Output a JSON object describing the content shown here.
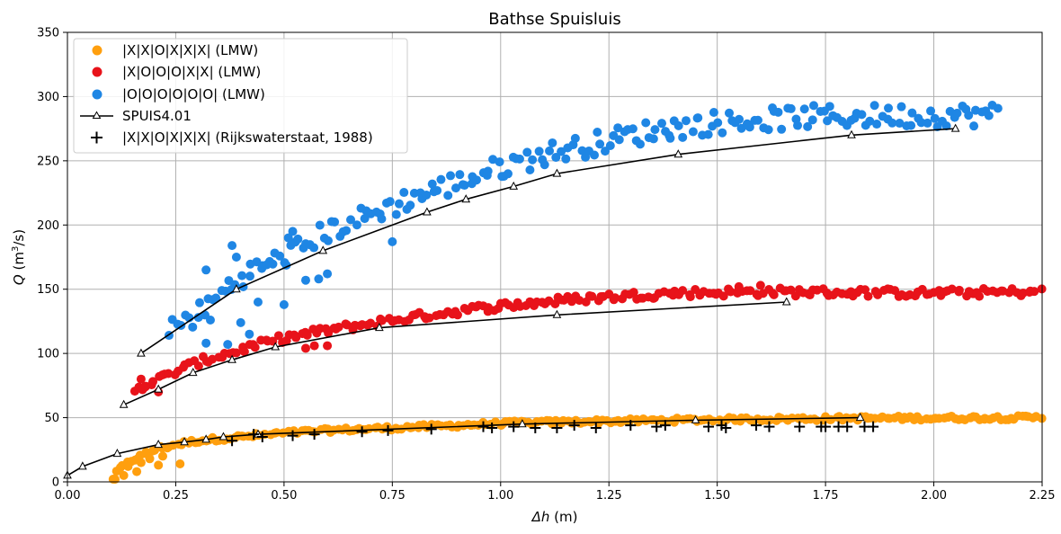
{
  "chart_data": {
    "type": "scatter",
    "title": "Bathse Spuisluis",
    "xlabel_symbol": "Δh",
    "xlabel_unit": " (m)",
    "ylabel_symbol": "Q",
    "ylabel_unit_pre": " (m",
    "ylabel_unit_sup": "3",
    "ylabel_unit_post": "/s)",
    "xlim": [
      0,
      2.25
    ],
    "ylim": [
      0,
      350
    ],
    "xticks": [
      "0.00",
      "0.25",
      "0.50",
      "0.75",
      "1.00",
      "1.25",
      "1.50",
      "1.75",
      "2.00",
      "2.25"
    ],
    "yticks": [
      "0",
      "50",
      "100",
      "150",
      "200",
      "250",
      "300",
      "350"
    ],
    "grid": true,
    "legend_position": "upper-left",
    "colors": {
      "orange": "#ff9f0e",
      "red": "#e8131a",
      "blue": "#1f86e4",
      "line": "#000000",
      "grid": "#b0b0b0"
    },
    "series": [
      {
        "name": "|X|X|O|X|X|X| (LMW)",
        "kind": "scatter-dense",
        "color": "orange",
        "curve": [
          [
            0.1,
            0
          ],
          [
            0.12,
            10
          ],
          [
            0.15,
            17
          ],
          [
            0.2,
            25
          ],
          [
            0.25,
            29
          ],
          [
            0.3,
            32
          ],
          [
            0.4,
            35
          ],
          [
            0.5,
            38
          ],
          [
            0.6,
            40
          ],
          [
            0.75,
            42
          ],
          [
            0.9,
            44
          ],
          [
            1.0,
            45.5
          ],
          [
            1.2,
            47
          ],
          [
            1.5,
            48.5
          ],
          [
            1.8,
            49.5
          ],
          [
            2.25,
            50
          ]
        ],
        "extra_points": [
          [
            0.11,
            2
          ],
          [
            0.13,
            5
          ],
          [
            0.16,
            8
          ],
          [
            0.17,
            15
          ],
          [
            0.19,
            18
          ],
          [
            0.21,
            13
          ],
          [
            0.22,
            20
          ],
          [
            0.26,
            14
          ],
          [
            0.14,
            12
          ],
          [
            0.18,
            22
          ]
        ],
        "x_range": [
          0.1,
          2.25
        ]
      },
      {
        "name": "|X|O|O|O|X|X| (LMW)",
        "kind": "scatter-dense",
        "color": "red",
        "curve": [
          [
            0.15,
            72
          ],
          [
            0.2,
            78
          ],
          [
            0.25,
            86
          ],
          [
            0.3,
            93
          ],
          [
            0.4,
            103
          ],
          [
            0.5,
            112
          ],
          [
            0.6,
            118
          ],
          [
            0.75,
            126
          ],
          [
            0.9,
            133
          ],
          [
            1.0,
            137
          ],
          [
            1.2,
            143
          ],
          [
            1.4,
            147
          ],
          [
            1.6,
            148
          ],
          [
            2.0,
            147
          ],
          [
            2.25,
            148
          ]
        ],
        "extra_points": [
          [
            0.17,
            80
          ],
          [
            0.18,
            74
          ],
          [
            0.21,
            70
          ],
          [
            0.55,
            104
          ],
          [
            0.57,
            106
          ],
          [
            0.6,
            106
          ],
          [
            1.55,
            152
          ],
          [
            1.6,
            153
          ]
        ],
        "x_range": [
          0.15,
          2.25
        ]
      },
      {
        "name": "|O|O|O|O|O|O| (LMW)",
        "kind": "scatter-dense",
        "color": "blue",
        "curve": [
          [
            0.23,
            118
          ],
          [
            0.3,
            130
          ],
          [
            0.35,
            145
          ],
          [
            0.4,
            160
          ],
          [
            0.5,
            175
          ],
          [
            0.6,
            195
          ],
          [
            0.7,
            208
          ],
          [
            0.8,
            222
          ],
          [
            0.9,
            233
          ],
          [
            1.0,
            245
          ],
          [
            1.1,
            255
          ],
          [
            1.2,
            262
          ],
          [
            1.3,
            270
          ],
          [
            1.4,
            276
          ],
          [
            1.5,
            280
          ],
          [
            1.7,
            284
          ],
          [
            1.9,
            285
          ],
          [
            2.15,
            286
          ]
        ],
        "extra_points": [
          [
            0.32,
            165
          ],
          [
            0.32,
            108
          ],
          [
            0.33,
            126
          ],
          [
            0.37,
            107
          ],
          [
            0.38,
            184
          ],
          [
            0.39,
            175
          ],
          [
            0.4,
            124
          ],
          [
            0.42,
            115
          ],
          [
            0.44,
            140
          ],
          [
            0.46,
            169
          ],
          [
            0.5,
            138
          ],
          [
            0.51,
            190
          ],
          [
            0.52,
            195
          ],
          [
            0.55,
            157
          ],
          [
            0.58,
            158
          ],
          [
            0.6,
            162
          ],
          [
            0.75,
            187
          ]
        ],
        "x_range": [
          0.23,
          2.15
        ]
      },
      {
        "name": "SPUIS4.01",
        "kind": "line-marker",
        "color": "line",
        "groups": [
          [
            [
              0.0,
              5
            ],
            [
              0.035,
              12
            ],
            [
              0.115,
              22
            ],
            [
              0.21,
              29
            ],
            [
              0.27,
              31
            ],
            [
              0.32,
              33
            ],
            [
              0.36,
              35
            ],
            [
              0.44,
              37
            ],
            [
              1.05,
              45
            ],
            [
              1.45,
              48
            ],
            [
              1.83,
              50
            ]
          ],
          [
            [
              0.13,
              60
            ],
            [
              0.21,
              72
            ],
            [
              0.29,
              85
            ],
            [
              0.38,
              95
            ],
            [
              0.48,
              105
            ],
            [
              0.72,
              120
            ],
            [
              1.13,
              130
            ],
            [
              1.66,
              140
            ]
          ],
          [
            [
              0.17,
              100
            ],
            [
              0.39,
              150
            ],
            [
              0.59,
              180
            ],
            [
              0.83,
              210
            ],
            [
              0.92,
              220
            ],
            [
              1.03,
              230
            ],
            [
              1.13,
              240
            ],
            [
              1.41,
              255
            ],
            [
              1.81,
              270
            ],
            [
              2.05,
              275
            ]
          ]
        ]
      },
      {
        "name": "|X|X|O|X|X|X| (Rijkswaterstaat, 1988)",
        "kind": "plus-marker",
        "color": "line",
        "points": [
          [
            0.38,
            32
          ],
          [
            0.43,
            37
          ],
          [
            0.45,
            35
          ],
          [
            0.52,
            36
          ],
          [
            0.57,
            37
          ],
          [
            0.68,
            39
          ],
          [
            0.74,
            40
          ],
          [
            0.84,
            41
          ],
          [
            0.96,
            43
          ],
          [
            0.98,
            42
          ],
          [
            1.03,
            43
          ],
          [
            1.08,
            42
          ],
          [
            1.13,
            42
          ],
          [
            1.17,
            44
          ],
          [
            1.22,
            42
          ],
          [
            1.3,
            44
          ],
          [
            1.36,
            43
          ],
          [
            1.38,
            44
          ],
          [
            1.48,
            43
          ],
          [
            1.51,
            44
          ],
          [
            1.52,
            42
          ],
          [
            1.59,
            44
          ],
          [
            1.62,
            43
          ],
          [
            1.69,
            43
          ],
          [
            1.74,
            43
          ],
          [
            1.75,
            43
          ],
          [
            1.78,
            43
          ],
          [
            1.8,
            43
          ],
          [
            1.84,
            43
          ],
          [
            1.86,
            43
          ]
        ]
      }
    ]
  }
}
